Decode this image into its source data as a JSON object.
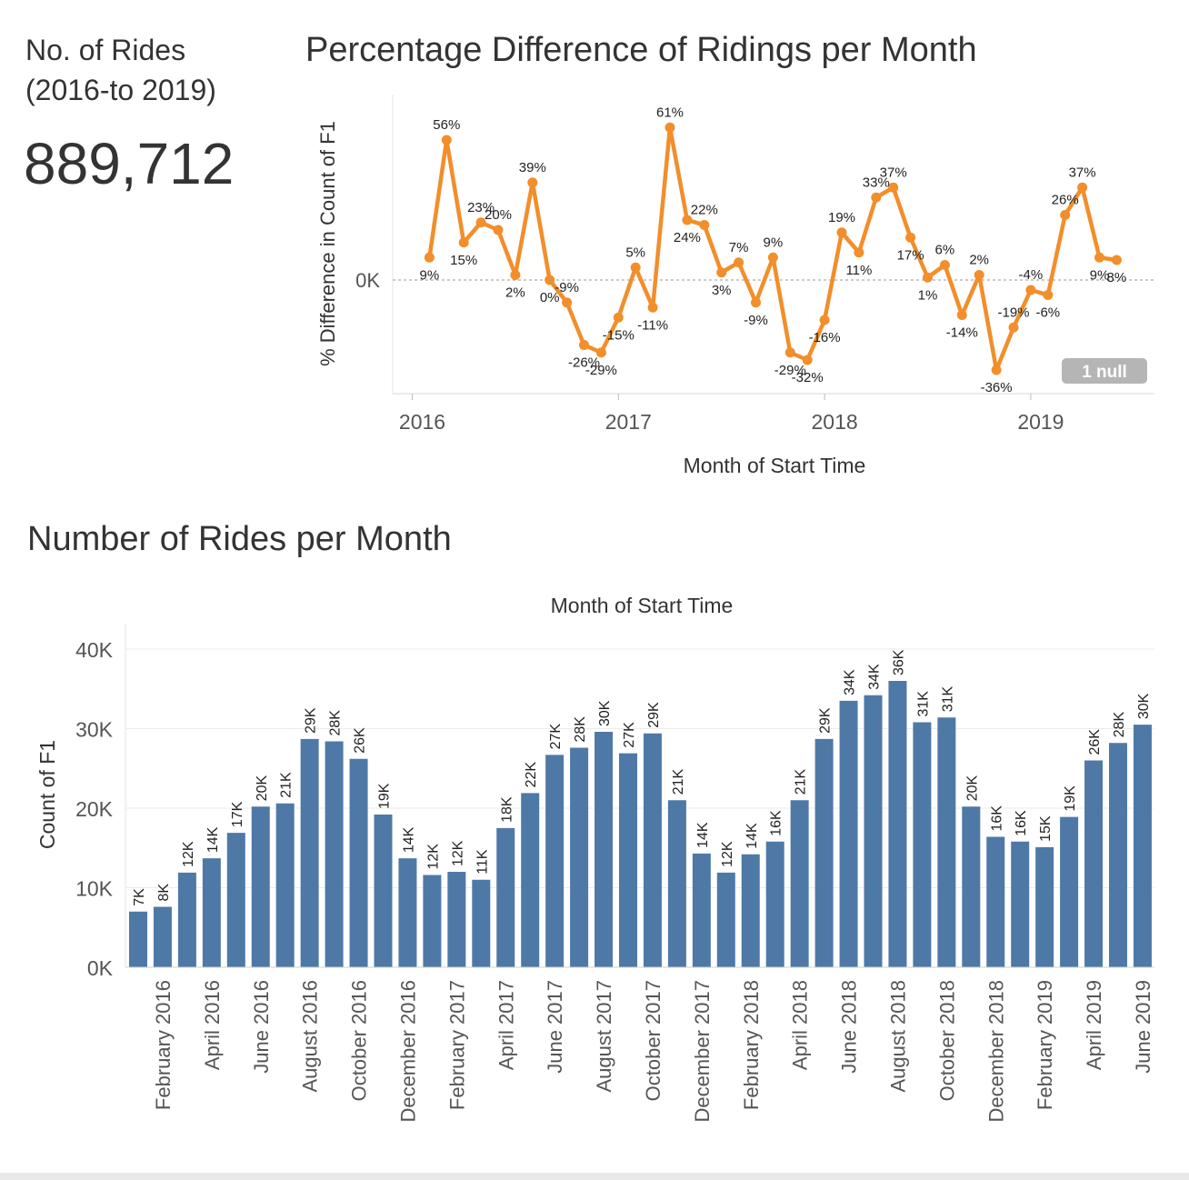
{
  "kpi": {
    "title": "No. of Rides",
    "subtitle": "(2016-to 2019)",
    "value": "889,712"
  },
  "colors": {
    "line": "#F28E2B",
    "bar": "#4E79A7",
    "text": "#333333",
    "axis": "#555555",
    "grid": "#EBEBEB",
    "null_badge_bg": "#B5B5B5"
  },
  "chart_data": [
    {
      "type": "line",
      "title": "Percentage Difference of Ridings per Month",
      "xlabel": "Month of Start Time",
      "ylabel": "% Difference in Count of F1",
      "y_tick_label": "0K",
      "x_ticks": [
        "2016",
        "2017",
        "2018",
        "2019"
      ],
      "null_badge": "1 null",
      "grid": false,
      "x": [
        "2016-02",
        "2016-03",
        "2016-04",
        "2016-05",
        "2016-06",
        "2016-07",
        "2016-08",
        "2016-09",
        "2016-10",
        "2016-11",
        "2016-12",
        "2017-01",
        "2017-02",
        "2017-03",
        "2017-04",
        "2017-05",
        "2017-06",
        "2017-07",
        "2017-08",
        "2017-09",
        "2017-10",
        "2017-11",
        "2017-12",
        "2018-01",
        "2018-02",
        "2018-03",
        "2018-04",
        "2018-05",
        "2018-06",
        "2018-07",
        "2018-08",
        "2018-09",
        "2018-10",
        "2018-11",
        "2018-12",
        "2019-01",
        "2019-02",
        "2019-03",
        "2019-04",
        "2019-05",
        "2019-06"
      ],
      "values": [
        9,
        56,
        15,
        23,
        20,
        2,
        39,
        0,
        -9,
        -26,
        -29,
        -15,
        5,
        -11,
        61,
        24,
        22,
        3,
        7,
        -9,
        9,
        -29,
        -32,
        -16,
        19,
        11,
        33,
        37,
        17,
        1,
        6,
        -14,
        2,
        -36,
        -19,
        -4,
        -6,
        26,
        37,
        9,
        8
      ],
      "labels": [
        "9%",
        "56%",
        "15%",
        "23%",
        "20%",
        "2%",
        "39%",
        "0%",
        "-9%",
        "-26%",
        "-29%",
        "-15%",
        "5%",
        "-11%",
        "61%",
        "24%",
        "22%",
        "3%",
        "7%",
        "-9%",
        "9%",
        "-29%",
        "-32%",
        "-16%",
        "19%",
        "11%",
        "33%",
        "37%",
        "17%",
        "1%",
        "6%",
        "-14%",
        "2%",
        "-36%",
        "-19%",
        "-4%",
        "-6%",
        "26%",
        "37%",
        "9%",
        "8%"
      ]
    },
    {
      "type": "bar",
      "title": "Number of Rides per Month",
      "xlabel": "Month of Start Time",
      "ylabel": "Count of F1",
      "ylim": [
        0,
        40000
      ],
      "y_ticks": [
        0,
        10000,
        20000,
        30000,
        40000
      ],
      "y_tick_labels": [
        "0K",
        "10K",
        "20K",
        "30K",
        "40K"
      ],
      "grid": true,
      "categories": [
        "January 2016",
        "February 2016",
        "March 2016",
        "April 2016",
        "May 2016",
        "June 2016",
        "July 2016",
        "August 2016",
        "September 2016",
        "October 2016",
        "November 2016",
        "December 2016",
        "January 2017",
        "February 2017",
        "March 2017",
        "April 2017",
        "May 2017",
        "June 2017",
        "July 2017",
        "August 2017",
        "September 2017",
        "October 2017",
        "November 2017",
        "December 2017",
        "January 2018",
        "February 2018",
        "March 2018",
        "April 2018",
        "May 2018",
        "June 2018",
        "July 2018",
        "August 2018",
        "September 2018",
        "October 2018",
        "November 2018",
        "December 2018",
        "January 2019",
        "February 2019",
        "March 2019",
        "April 2019",
        "May 2019",
        "June 2019"
      ],
      "tick_labels_shown": [
        "",
        "February 2016",
        "",
        "April 2016",
        "",
        "June 2016",
        "",
        "August 2016",
        "",
        "October 2016",
        "",
        "December 2016",
        "",
        "February 2017",
        "",
        "April 2017",
        "",
        "June 2017",
        "",
        "August 2017",
        "",
        "October 2017",
        "",
        "December 2017",
        "",
        "February 2018",
        "",
        "April 2018",
        "",
        "June 2018",
        "",
        "August 2018",
        "",
        "October 2018",
        "",
        "December 2018",
        "",
        "February 2019",
        "",
        "April 2019",
        "",
        "June 2019"
      ],
      "values": [
        7000,
        7600,
        11900,
        13700,
        16900,
        20200,
        20600,
        28700,
        28400,
        26200,
        19200,
        13700,
        11600,
        12000,
        11000,
        17500,
        21900,
        26700,
        27600,
        29600,
        26900,
        29400,
        21000,
        14300,
        11900,
        14200,
        15800,
        21000,
        28700,
        33500,
        34200,
        36000,
        30800,
        31400,
        20200,
        16400,
        15800,
        15100,
        18900,
        26000,
        28200,
        30500
      ],
      "labels": [
        "7K",
        "8K",
        "12K",
        "14K",
        "17K",
        "20K",
        "21K",
        "29K",
        "28K",
        "26K",
        "19K",
        "14K",
        "12K",
        "12K",
        "11K",
        "18K",
        "22K",
        "27K",
        "28K",
        "30K",
        "27K",
        "29K",
        "21K",
        "14K",
        "12K",
        "14K",
        "16K",
        "21K",
        "29K",
        "34K",
        "34K",
        "36K",
        "31K",
        "31K",
        "20K",
        "16K",
        "16K",
        "15K",
        "19K",
        "26K",
        "28K",
        "30K"
      ]
    }
  ]
}
